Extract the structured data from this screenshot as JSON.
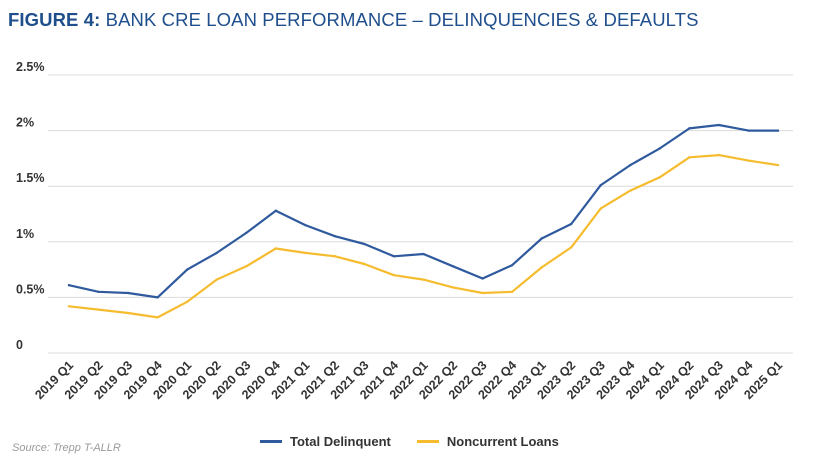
{
  "header": {
    "figure_label": "FIGURE 4:",
    "title_text": "BANK CRE LOAN PERFORMANCE – DELINQUENCIES & DEFAULTS"
  },
  "source": "Source: Trepp T-ALLR",
  "colors": {
    "title": "#1f4e8c",
    "total_delinquent": "#2f5a9e",
    "noncurrent_loans": "#f6bc2f",
    "grid": "#dcdcdc"
  },
  "chart_data": {
    "type": "line",
    "title": "BANK CRE LOAN PERFORMANCE – DELINQUENCIES & DEFAULTS",
    "xlabel": "",
    "ylabel": "",
    "ylim": [
      0,
      2.5
    ],
    "y_ticks": [
      {
        "value": 0,
        "label": "0"
      },
      {
        "value": 0.5,
        "label": "0.5%"
      },
      {
        "value": 1,
        "label": "1%"
      },
      {
        "value": 1.5,
        "label": "1.5%"
      },
      {
        "value": 2,
        "label": "2%"
      },
      {
        "value": 2.5,
        "label": "2.5%"
      }
    ],
    "grid": true,
    "legend_position": "bottom",
    "categories": [
      "2019 Q1",
      "2019 Q2",
      "2019 Q3",
      "2019 Q4",
      "2020 Q1",
      "2020 Q2",
      "2020 Q3",
      "2020 Q4",
      "2021 Q1",
      "2021 Q2",
      "2021 Q3",
      "2021 Q4",
      "2022 Q1",
      "2022 Q2",
      "2022 Q3",
      "2022 Q4",
      "2023 Q1",
      "2023 Q2",
      "2023 Q3",
      "2023 Q4",
      "2024 Q1",
      "2024 Q2",
      "2024 Q3",
      "2024 Q4",
      "2025 Q1"
    ],
    "series": [
      {
        "name": "Total Delinquent",
        "color": "#2f5a9e",
        "values": [
          0.61,
          0.55,
          0.54,
          0.5,
          0.75,
          0.9,
          1.08,
          1.28,
          1.15,
          1.05,
          0.98,
          0.87,
          0.89,
          0.78,
          0.67,
          0.79,
          1.03,
          1.16,
          1.51,
          1.69,
          1.84,
          2.02,
          2.05,
          2.0,
          2.0
        ]
      },
      {
        "name": "Noncurrent Loans",
        "color": "#f6bc2f",
        "values": [
          0.42,
          0.39,
          0.36,
          0.32,
          0.46,
          0.66,
          0.78,
          0.94,
          0.9,
          0.87,
          0.8,
          0.7,
          0.66,
          0.59,
          0.54,
          0.55,
          0.77,
          0.95,
          1.3,
          1.46,
          1.58,
          1.76,
          1.78,
          1.73,
          1.69
        ]
      }
    ]
  }
}
